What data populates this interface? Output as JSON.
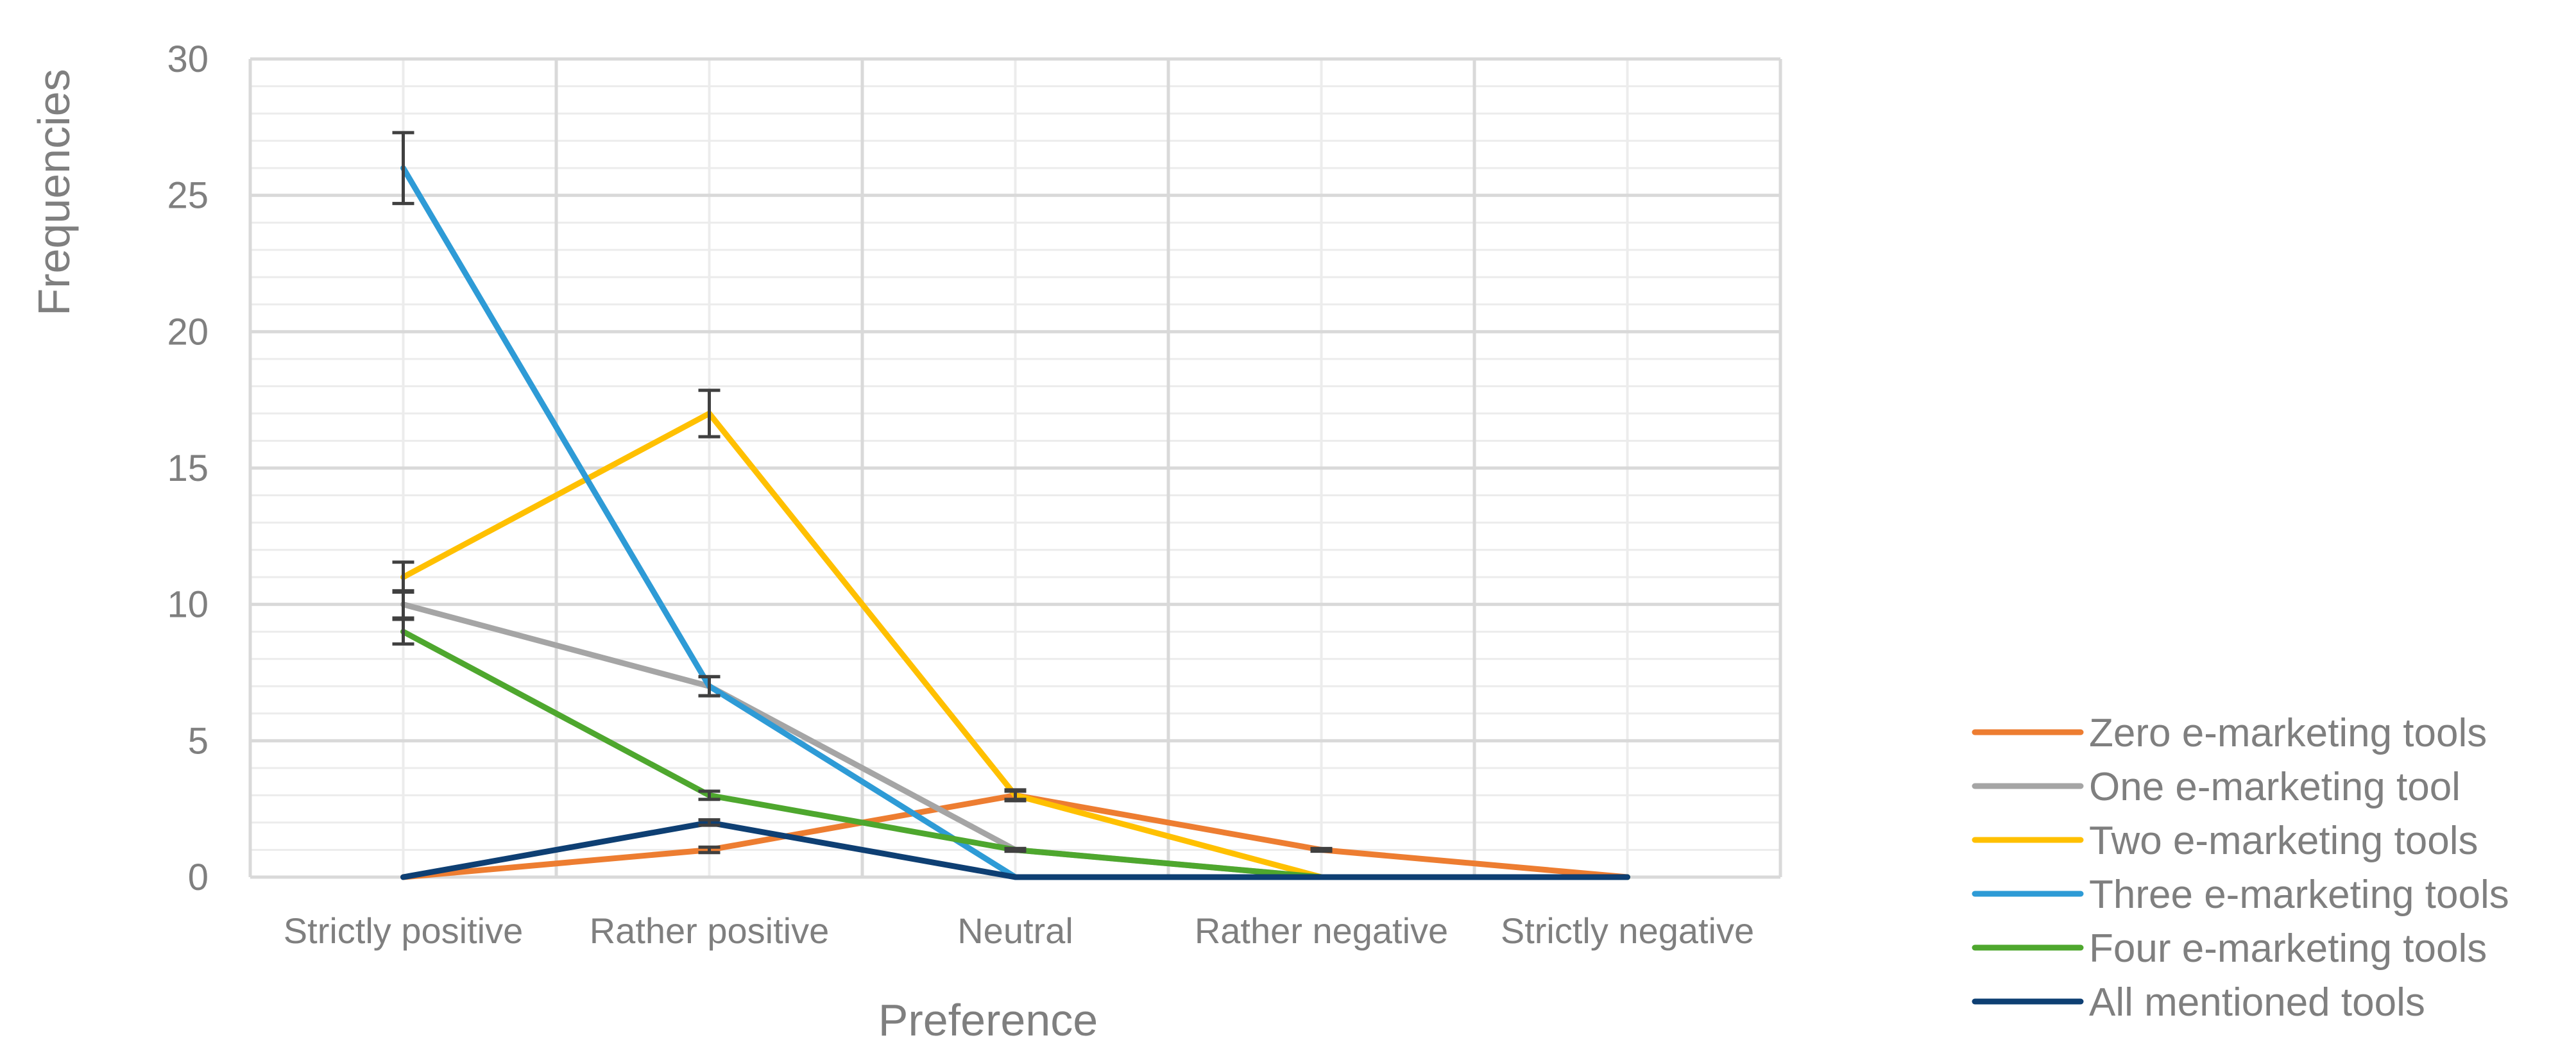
{
  "chart_data": {
    "type": "line",
    "title": "",
    "xlabel": "Preference",
    "ylabel": "Frequencies",
    "ylim": [
      0,
      30
    ],
    "yticks": [
      0,
      5,
      10,
      15,
      20,
      25,
      30
    ],
    "categories": [
      "Strictly positive",
      "Rather positive",
      "Neutral",
      "Rather negative",
      "Strictly negative"
    ],
    "grid": true,
    "legend_position": "bottom-right",
    "series": [
      {
        "name": "Zero e-marketing tools",
        "color": "#ED7D31",
        "values": [
          0,
          1,
          3,
          1,
          0
        ],
        "error": [
          0,
          0.1,
          0.2,
          0.05,
          0
        ]
      },
      {
        "name": "One e-marketing tool",
        "color": "#A5A5A5",
        "values": [
          10,
          7,
          1,
          0,
          0
        ],
        "error": [
          0.5,
          0.35,
          0.05,
          0,
          0
        ]
      },
      {
        "name": "Two e-marketing tools",
        "color": "#FFC000",
        "values": [
          11,
          17,
          3,
          0,
          0
        ],
        "error": [
          0.55,
          0.85,
          0.15,
          0,
          0
        ]
      },
      {
        "name": "Three e-marketing tools",
        "color": "#2E9BD6",
        "values": [
          26,
          7,
          0,
          0,
          0
        ],
        "error": [
          1.3,
          0.35,
          0,
          0,
          0
        ]
      },
      {
        "name": "Four e-marketing tools",
        "color": "#4EA72E",
        "values": [
          9,
          3,
          1,
          0,
          0
        ],
        "error": [
          0.45,
          0.15,
          0.05,
          0,
          0
        ]
      },
      {
        "name": "All mentioned tools",
        "color": "#0E3F73",
        "values": [
          0,
          2,
          0,
          0,
          0
        ],
        "error": [
          0,
          0.1,
          0,
          0,
          0
        ]
      }
    ]
  }
}
